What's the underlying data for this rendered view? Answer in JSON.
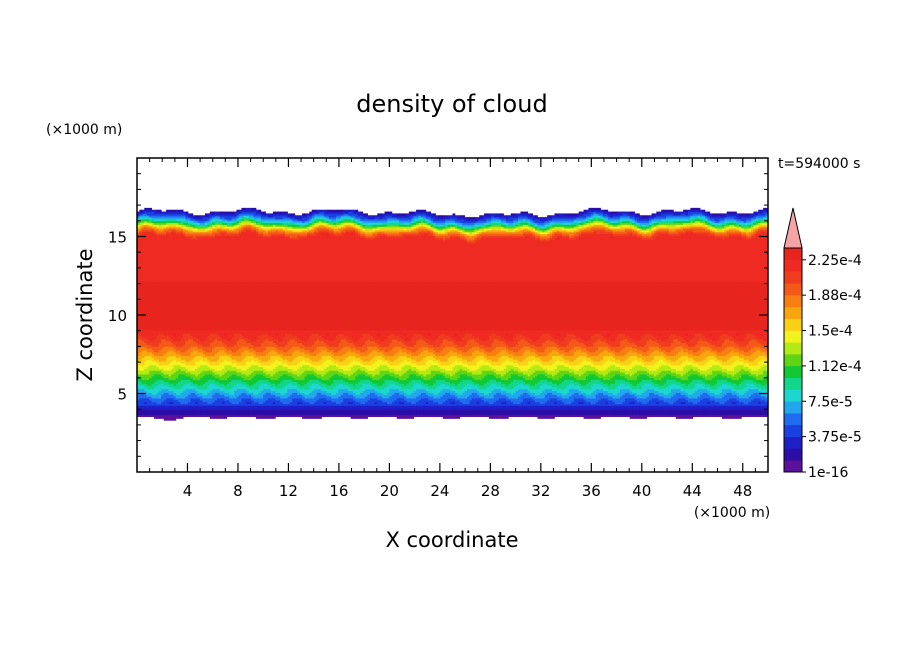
{
  "chart_data": {
    "type": "heatmap",
    "title": "density of cloud",
    "xlabel": "X coordinate",
    "ylabel": "Z coordinate",
    "x_unit": "(×1000 m)",
    "y_unit": "(×1000 m)",
    "time_label": "t=594000 s",
    "xlim": [
      0,
      50
    ],
    "ylim": [
      0,
      20
    ],
    "x_ticks": [
      4,
      8,
      12,
      16,
      20,
      24,
      28,
      32,
      36,
      40,
      44,
      48
    ],
    "y_ticks": [
      5,
      10,
      15
    ],
    "colorbar": {
      "labels": [
        "1e-16",
        "3.75e-5",
        "7.5e-5",
        "1.12e-4",
        "1.5e-4",
        "1.88e-4",
        "2.25e-4"
      ],
      "label_levels": [
        0,
        3,
        6,
        9,
        12,
        15,
        18
      ],
      "colors": [
        "#5b119c",
        "#2c0da6",
        "#1f1fc8",
        "#1a40e0",
        "#1f6cf0",
        "#22a6ee",
        "#1ed6d0",
        "#12d68a",
        "#12c833",
        "#60d514",
        "#b4ea13",
        "#f2f21e",
        "#fad015",
        "#f8a60f",
        "#f87e12",
        "#f45a17",
        "#f03c1e",
        "#ee2a22",
        "#e8241e"
      ],
      "extend_color": "#f4a4a4"
    },
    "profile": {
      "z": [
        3.5,
        3.8,
        4.1,
        4.4,
        4.7,
        5.0,
        5.3,
        5.6,
        5.9,
        6.2,
        6.5,
        6.8,
        7.1,
        7.4,
        7.7,
        8.0,
        8.4,
        8.8,
        9.3,
        15.0,
        15.4,
        15.7,
        16.0,
        16.3,
        16.6
      ],
      "level": [
        0,
        1,
        2,
        3,
        4,
        5,
        6,
        7,
        8,
        9,
        10,
        11,
        12,
        13,
        14,
        15,
        16,
        17,
        18,
        17,
        14,
        10,
        6,
        3,
        1
      ]
    }
  }
}
